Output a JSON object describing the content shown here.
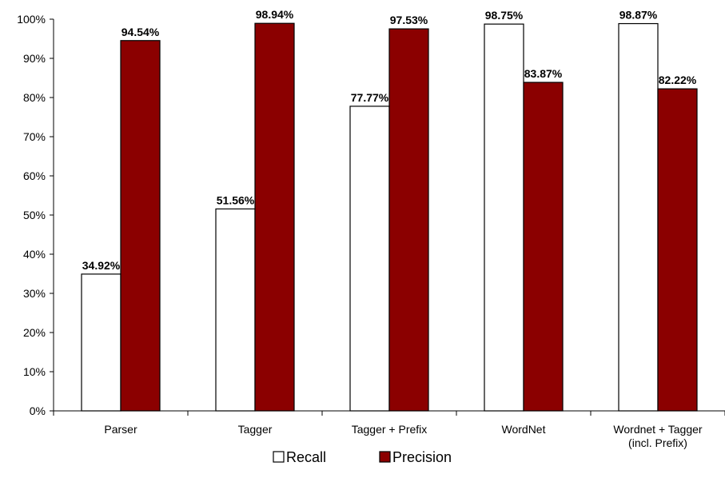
{
  "chart_data": {
    "type": "bar",
    "title": "",
    "xlabel": "",
    "ylabel": "",
    "ylim": [
      0,
      100
    ],
    "yticks": [
      "0%",
      "10%",
      "20%",
      "30%",
      "40%",
      "50%",
      "60%",
      "70%",
      "80%",
      "90%",
      "100%"
    ],
    "categories": [
      [
        "Parser"
      ],
      [
        "Tagger"
      ],
      [
        "Tagger + Prefix"
      ],
      [
        "WordNet"
      ],
      [
        "Wordnet + Tagger",
        "(incl. Prefix)"
      ]
    ],
    "series": [
      {
        "name": "Recall",
        "color": "#ffffff",
        "values": [
          34.92,
          51.56,
          77.77,
          98.75,
          98.87
        ],
        "labels": [
          "34.92%",
          "51.56%",
          "77.77%",
          "98.75%",
          "98.87%"
        ]
      },
      {
        "name": "Precision",
        "color": "#8b0000",
        "values": [
          94.54,
          98.94,
          97.53,
          83.87,
          82.22
        ],
        "labels": [
          "94.54%",
          "98.94%",
          "97.53%",
          "83.87%",
          "82.22%"
        ]
      }
    ],
    "grid": false,
    "legend_position": "bottom"
  }
}
